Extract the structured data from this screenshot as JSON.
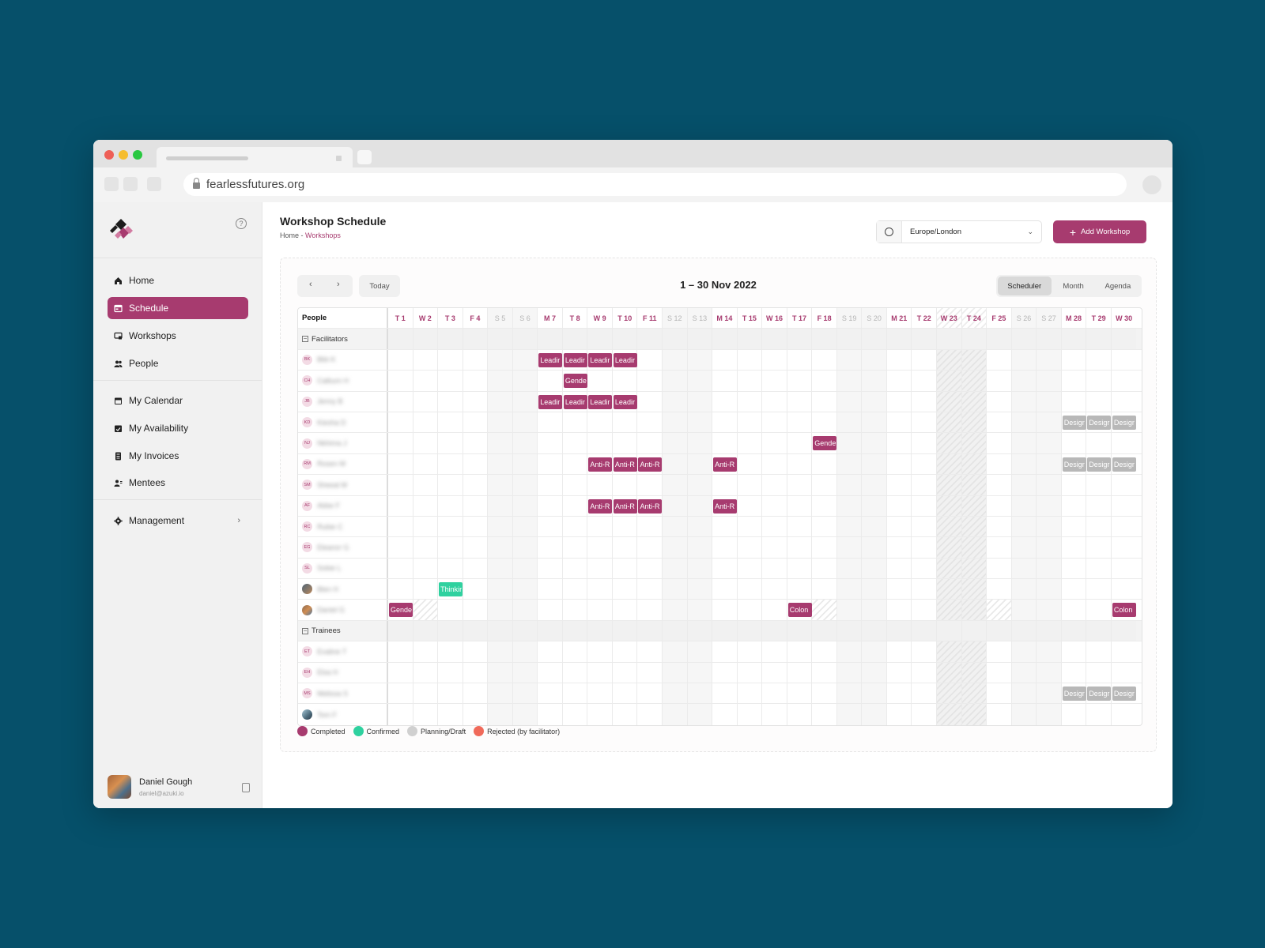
{
  "browser": {
    "url": "fearlessfutures.org"
  },
  "sidebar": {
    "items": [
      {
        "label": "Home",
        "icon": "home-icon"
      },
      {
        "label": "Schedule",
        "icon": "schedule-icon",
        "active": true
      },
      {
        "label": "Workshops",
        "icon": "workshops-icon"
      },
      {
        "label": "People",
        "icon": "people-icon"
      },
      {
        "label": "My Calendar",
        "icon": "calendar-icon"
      },
      {
        "label": "My Availability",
        "icon": "availability-icon"
      },
      {
        "label": "My Invoices",
        "icon": "invoice-icon"
      },
      {
        "label": "Mentees",
        "icon": "mentees-icon"
      },
      {
        "label": "Management",
        "icon": "gear-icon",
        "has_submenu": true
      }
    ],
    "user": {
      "name": "Daniel Gough",
      "email": "daniel@azuki.io"
    }
  },
  "header": {
    "title": "Workshop Schedule",
    "breadcrumb": [
      "Home",
      "Workshops"
    ],
    "breadcrumb_separator": "-",
    "timezone": "Europe/London",
    "add_button": "Add Workshop"
  },
  "scheduler": {
    "today_label": "Today",
    "range": "1 – 30 Nov 2022",
    "views": [
      "Scheduler",
      "Month",
      "Agenda"
    ],
    "selected_view": "Scheduler",
    "people_header": "People",
    "days": [
      {
        "label": "T 1",
        "weekend": false
      },
      {
        "label": "W 2",
        "weekend": false
      },
      {
        "label": "T 3",
        "weekend": false
      },
      {
        "label": "F 4",
        "weekend": false
      },
      {
        "label": "S 5",
        "weekend": true
      },
      {
        "label": "S 6",
        "weekend": true
      },
      {
        "label": "M 7",
        "weekend": false
      },
      {
        "label": "T 8",
        "weekend": false
      },
      {
        "label": "W 9",
        "weekend": false
      },
      {
        "label": "T 10",
        "weekend": false
      },
      {
        "label": "F 11",
        "weekend": false
      },
      {
        "label": "S 12",
        "weekend": true
      },
      {
        "label": "S 13",
        "weekend": true
      },
      {
        "label": "M 14",
        "weekend": false
      },
      {
        "label": "T 15",
        "weekend": false
      },
      {
        "label": "W 16",
        "weekend": false
      },
      {
        "label": "T 17",
        "weekend": false
      },
      {
        "label": "F 18",
        "weekend": false
      },
      {
        "label": "S 19",
        "weekend": true
      },
      {
        "label": "S 20",
        "weekend": true
      },
      {
        "label": "M 21",
        "weekend": false
      },
      {
        "label": "T 22",
        "weekend": false
      },
      {
        "label": "W 23",
        "weekend": false,
        "holiday": true
      },
      {
        "label": "T 24",
        "weekend": false,
        "holiday": true
      },
      {
        "label": "F 25",
        "weekend": false
      },
      {
        "label": "S 26",
        "weekend": true
      },
      {
        "label": "S 27",
        "weekend": true
      },
      {
        "label": "M 28",
        "weekend": false
      },
      {
        "label": "T 29",
        "weekend": false
      },
      {
        "label": "W 30",
        "weekend": false
      }
    ],
    "groups": [
      {
        "name": "Facilitators",
        "people": [
          {
            "initials": "BK",
            "name": "Bibi K",
            "events": [
              {
                "day": 7,
                "label": "Leadir",
                "status": "completed"
              },
              {
                "day": 8,
                "label": "Leadir",
                "status": "completed"
              },
              {
                "day": 9,
                "label": "Leadir",
                "status": "completed"
              },
              {
                "day": 10,
                "label": "Leadir",
                "status": "completed"
              }
            ]
          },
          {
            "initials": "CH",
            "name": "Calbum H",
            "events": [
              {
                "day": 8,
                "label": "Gende",
                "status": "completed"
              }
            ]
          },
          {
            "initials": "JB",
            "name": "Jenny B",
            "events": [
              {
                "day": 7,
                "label": "Leadir",
                "status": "completed"
              },
              {
                "day": 8,
                "label": "Leadir",
                "status": "completed"
              },
              {
                "day": 9,
                "label": "Leadir",
                "status": "completed"
              },
              {
                "day": 10,
                "label": "Leadir",
                "status": "completed"
              }
            ]
          },
          {
            "initials": "KD",
            "name": "Kiesha D",
            "events": [
              {
                "day": 28,
                "label": "Desigr",
                "status": "planning"
              },
              {
                "day": 29,
                "label": "Desigr",
                "status": "planning"
              },
              {
                "day": 30,
                "label": "Desigr",
                "status": "planning"
              }
            ]
          },
          {
            "initials": "NJ",
            "name": "Nkhima J",
            "events": [
              {
                "day": 18,
                "label": "Gende",
                "status": "completed"
              }
            ]
          },
          {
            "initials": "RM",
            "name": "Rosen M",
            "events": [
              {
                "day": 9,
                "label": "Anti-R",
                "status": "completed"
              },
              {
                "day": 10,
                "label": "Anti-R",
                "status": "completed"
              },
              {
                "day": 11,
                "label": "Anti-R",
                "status": "completed"
              },
              {
                "day": 14,
                "label": "Anti-R",
                "status": "completed"
              },
              {
                "day": 28,
                "label": "Desigr",
                "status": "planning"
              },
              {
                "day": 29,
                "label": "Desigr",
                "status": "planning"
              },
              {
                "day": 30,
                "label": "Desigr",
                "status": "planning"
              }
            ]
          },
          {
            "initials": "SM",
            "name": "Sheeal M",
            "events": []
          },
          {
            "initials": "AF",
            "name": "Abbe F",
            "events": [
              {
                "day": 9,
                "label": "Anti-R",
                "status": "completed"
              },
              {
                "day": 10,
                "label": "Anti-R",
                "status": "completed"
              },
              {
                "day": 11,
                "label": "Anti-R",
                "status": "completed"
              },
              {
                "day": 14,
                "label": "Anti-R",
                "status": "completed"
              }
            ]
          },
          {
            "initials": "RC",
            "name": "Rubie C",
            "events": []
          },
          {
            "initials": "EG",
            "name": "Eleanor G",
            "events": []
          },
          {
            "initials": "SL",
            "name": "Sobie L",
            "events": []
          },
          {
            "initials": "",
            "name": "Blen H",
            "photo": "photo",
            "events": [
              {
                "day": 3,
                "label": "Thinkir",
                "status": "confirmed"
              }
            ]
          },
          {
            "initials": "",
            "name": "Daniel G",
            "photo": "photo2",
            "events": [
              {
                "day": 1,
                "label": "Gende",
                "status": "completed"
              },
              {
                "day": 17,
                "label": "Colon",
                "status": "completed"
              },
              {
                "day": 30,
                "label": "Colon",
                "status": "completed"
              }
            ],
            "unavailable": [
              2,
              18,
              25
            ]
          }
        ]
      },
      {
        "name": "Trainees",
        "people": [
          {
            "initials": "ET",
            "name": "Evaline T",
            "events": []
          },
          {
            "initials": "EH",
            "name": "Elsa H",
            "events": []
          },
          {
            "initials": "MS",
            "name": "Melissa S",
            "events": [
              {
                "day": 28,
                "label": "Desigr",
                "status": "planning"
              },
              {
                "day": 29,
                "label": "Desigr",
                "status": "planning"
              },
              {
                "day": 30,
                "label": "Desigr",
                "status": "planning"
              }
            ]
          },
          {
            "initials": "",
            "name": "Tom F",
            "photo": "photo3",
            "events": []
          }
        ]
      }
    ]
  },
  "legend": [
    {
      "label": "Completed",
      "color": "#a73b6f"
    },
    {
      "label": "Confirmed",
      "color": "#2fd19f"
    },
    {
      "label": "Planning/Draft",
      "color": "#d0d0d0"
    },
    {
      "label": "Rejected (by facilitator)",
      "color": "#f06a5a"
    }
  ]
}
